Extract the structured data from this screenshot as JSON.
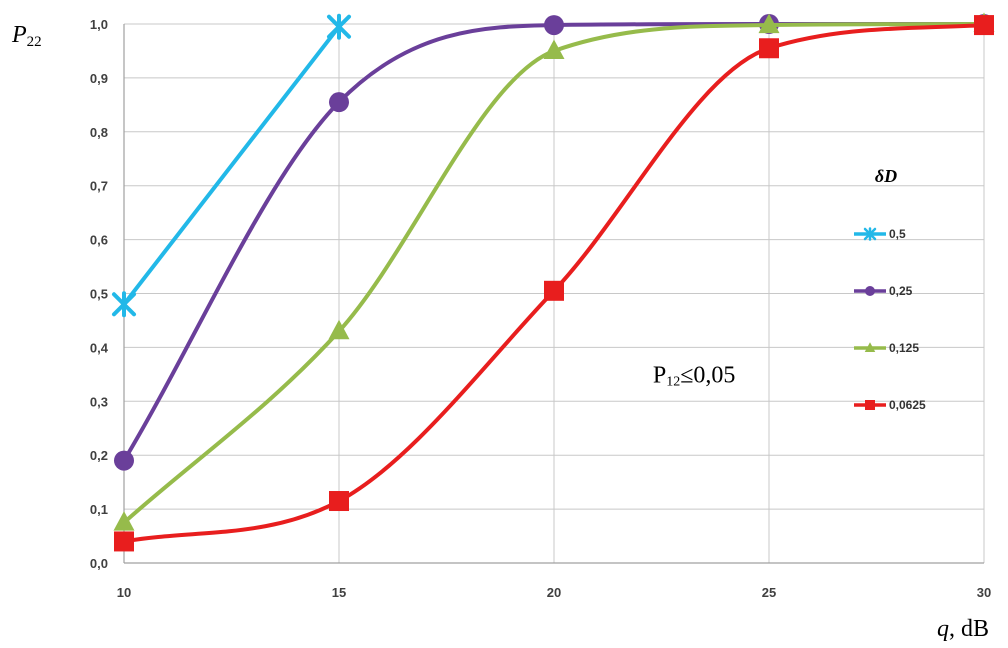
{
  "chart_data": {
    "type": "line",
    "title": "",
    "x": [
      10,
      15,
      20,
      25,
      30
    ],
    "xlim": [
      10,
      30
    ],
    "ylim": [
      0.0,
      1.0
    ],
    "x_ticks": [
      "10",
      "15",
      "20",
      "25",
      "30"
    ],
    "y_ticks": [
      "0,0",
      "0,1",
      "0,2",
      "0,3",
      "0,4",
      "0,5",
      "0,6",
      "0,7",
      "0,8",
      "0,9",
      "1,0"
    ],
    "ylabel_main": "P",
    "ylabel_sub": "22",
    "xlabel_main": "q",
    "xlabel_unit": ", dB",
    "grid": true,
    "smooth": true,
    "legend_title": "δD",
    "legend_position": "right",
    "annotation": {
      "main": "P",
      "sub": "12",
      "rest": "≤0,05",
      "x": 22.3,
      "y": 0.35
    },
    "series": [
      {
        "name": "0,5",
        "color": "#22b8e8",
        "marker": "star",
        "x": [
          10,
          15
        ],
        "values": [
          0.48,
          0.995
        ]
      },
      {
        "name": "0,25",
        "color": "#6a3f9a",
        "marker": "circle",
        "x": [
          10,
          15,
          20,
          25,
          30
        ],
        "values": [
          0.19,
          0.855,
          0.998,
          1.0,
          1.0
        ]
      },
      {
        "name": "0,125",
        "color": "#96bb4b",
        "marker": "triangle",
        "x": [
          10,
          15,
          20,
          25,
          30
        ],
        "values": [
          0.075,
          0.43,
          0.95,
          0.998,
          1.0
        ]
      },
      {
        "name": "0,0625",
        "color": "#e81e1e",
        "marker": "square",
        "x": [
          10,
          15,
          20,
          25,
          30
        ],
        "values": [
          0.04,
          0.115,
          0.505,
          0.955,
          0.998
        ]
      }
    ]
  }
}
